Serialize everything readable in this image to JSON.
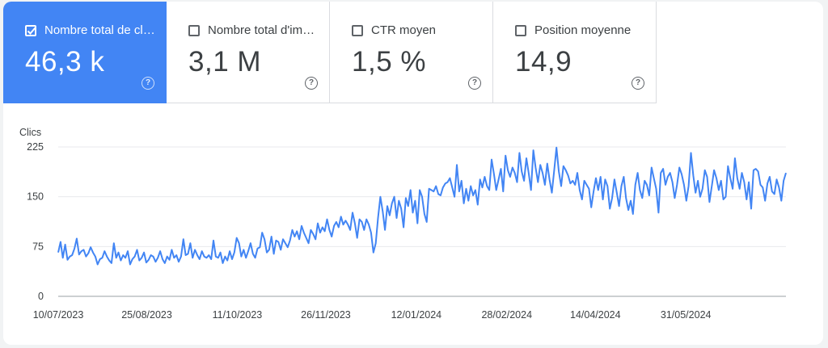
{
  "metrics": [
    {
      "label": "Nombre total de clics",
      "value": "46,3 k",
      "checked": true,
      "help": "?"
    },
    {
      "label": "Nombre total d'impressions",
      "value": "3,1 M",
      "checked": false,
      "help": "?"
    },
    {
      "label": "CTR moyen",
      "value": "1,5 %",
      "checked": false,
      "help": "?"
    },
    {
      "label": "Position moyenne",
      "value": "14,9",
      "checked": false,
      "help": "?"
    }
  ],
  "colors": {
    "accent": "#4285f4",
    "line": "#4285f4",
    "grid": "#e8eaed",
    "text": "#3c4043"
  },
  "chart_data": {
    "type": "line",
    "title": "",
    "ylabel": "Clics",
    "xlabel": "",
    "ylim": [
      0,
      225
    ],
    "yticks": [
      0,
      75,
      150,
      225
    ],
    "xlim": [
      "2023-07-10",
      "2024-07-22"
    ],
    "xtick_labels": [
      {
        "date": "2023-07-10",
        "label": "10/07/2023"
      },
      {
        "date": "2023-08-25",
        "label": "25/08/2023"
      },
      {
        "date": "2023-10-11",
        "label": "11/10/2023"
      },
      {
        "date": "2023-11-26",
        "label": "26/11/2023"
      },
      {
        "date": "2024-01-12",
        "label": "12/01/2024"
      },
      {
        "date": "2024-02-28",
        "label": "28/02/2024"
      },
      {
        "date": "2024-04-14",
        "label": "14/04/2024"
      },
      {
        "date": "2024-05-31",
        "label": "31/05/2024"
      }
    ],
    "grid": true,
    "legend": "none",
    "series": [
      {
        "values": [
          66,
          82,
          58,
          78,
          55,
          60,
          62,
          72,
          87,
          63,
          68,
          70,
          60,
          65,
          74,
          66,
          60,
          48,
          56,
          58,
          68,
          60,
          54,
          50,
          80,
          58,
          66,
          54,
          62,
          58,
          68,
          48,
          56,
          60,
          70,
          54,
          58,
          66,
          51,
          55,
          62,
          60,
          52,
          58,
          68,
          56,
          50,
          60,
          55,
          70,
          58,
          62,
          52,
          60,
          86,
          62,
          64,
          80,
          58,
          70,
          62,
          56,
          68,
          60,
          58,
          62,
          56,
          84,
          60,
          58,
          66,
          50,
          60,
          54,
          68,
          56,
          66,
          88,
          80,
          60,
          70,
          58,
          68,
          80,
          64,
          58,
          72,
          74,
          96,
          86,
          66,
          70,
          90,
          64,
          84,
          82,
          70,
          86,
          80,
          74,
          84,
          100,
          90,
          98,
          86,
          106,
          96,
          88,
          80,
          100,
          94,
          86,
          110,
          96,
          104,
          98,
          116,
          100,
          90,
          106,
          112,
          104,
          120,
          108,
          114,
          108,
          100,
          126,
          110,
          88,
          116,
          112,
          100,
          116,
          108,
          96,
          66,
          80,
          118,
          150,
          128,
          100,
          136,
          122,
          140,
          150,
          118,
          144,
          132,
          104,
          148,
          136,
          160,
          126,
          144,
          110,
          160,
          150,
          124,
          112,
          162,
          160,
          158,
          166,
          154,
          152,
          164,
          170,
          172,
          178,
          164,
          150,
          198,
          158,
          174,
          140,
          162,
          144,
          166,
          152,
          160,
          138,
          176,
          164,
          180,
          166,
          160,
          206,
          184,
          160,
          176,
          192,
          158,
          212,
          190,
          180,
          194,
          186,
          172,
          216,
          188,
          174,
          208,
          186,
          160,
          220,
          194,
          172,
          198,
          186,
          168,
          200,
          176,
          156,
          190,
          224,
          188,
          166,
          196,
          190,
          182,
          170,
          174,
          168,
          186,
          160,
          146,
          174,
          168,
          162,
          134,
          158,
          178,
          160,
          180,
          146,
          176,
          166,
          132,
          148,
          176,
          156,
          136,
          166,
          180,
          148,
          130,
          144,
          124,
          168,
          186,
          160,
          148,
          174,
          168,
          152,
          194,
          178,
          162,
          126,
          186,
          192,
          168,
          180,
          186,
          172,
          148,
          168,
          194,
          184,
          168,
          144,
          166,
          216,
          182,
          156,
          174,
          150,
          162,
          190,
          180,
          142,
          166,
          190,
          178,
          160,
          174,
          146,
          150,
          196,
          178,
          162,
          208,
          178,
          162,
          186,
          172,
          146,
          172,
          132,
          190,
          192,
          188,
          168,
          164,
          144,
          170,
          180,
          158,
          154,
          176,
          164,
          144,
          174,
          186
        ]
      }
    ]
  }
}
